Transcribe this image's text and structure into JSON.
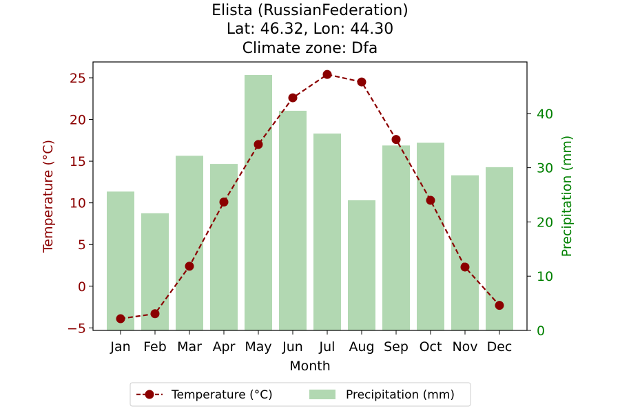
{
  "chart_data": {
    "type": "bar+line",
    "title_lines": [
      "Elista (RussianFederation)",
      "Lat: 46.32, Lon: 44.30",
      "Climate zone: Dfa"
    ],
    "xlabel": "Month",
    "ylabel_left": "Temperature (°C)",
    "ylabel_right": "Precipitation (mm)",
    "categories": [
      "Jan",
      "Feb",
      "Mar",
      "Apr",
      "May",
      "Jun",
      "Jul",
      "Aug",
      "Sep",
      "Oct",
      "Nov",
      "Dec"
    ],
    "series": [
      {
        "name": "Temperature (°C)",
        "kind": "line",
        "axis": "left",
        "style": "dashed-with-circle-markers",
        "color": "#8b0000",
        "values": [
          -3.9,
          -3.3,
          2.4,
          10.1,
          17.0,
          22.6,
          25.4,
          24.5,
          17.6,
          10.3,
          2.3,
          -2.3
        ]
      },
      {
        "name": "Precipitation (mm)",
        "kind": "bar",
        "axis": "right",
        "color": "#b2d8b2",
        "values": [
          25.6,
          21.6,
          32.2,
          30.7,
          47.1,
          40.5,
          36.3,
          24.0,
          34.1,
          34.6,
          28.6,
          30.1
        ]
      }
    ],
    "ylim_left": [
      -5.3,
      26.9
    ],
    "yticks_left": [
      "−5",
      "0",
      "5",
      "10",
      "15",
      "20",
      "25"
    ],
    "ytick_values_left": [
      -5,
      0,
      5,
      10,
      15,
      20,
      25
    ],
    "ylim_right": [
      0,
      49.5
    ],
    "yticks_right": [
      "0",
      "10",
      "20",
      "30",
      "40"
    ],
    "ytick_values_right": [
      0,
      10,
      20,
      30,
      40
    ],
    "left_axis_color": "#8b0000",
    "right_axis_color": "#008000",
    "grid": false,
    "legend_position": "bottom-center"
  }
}
